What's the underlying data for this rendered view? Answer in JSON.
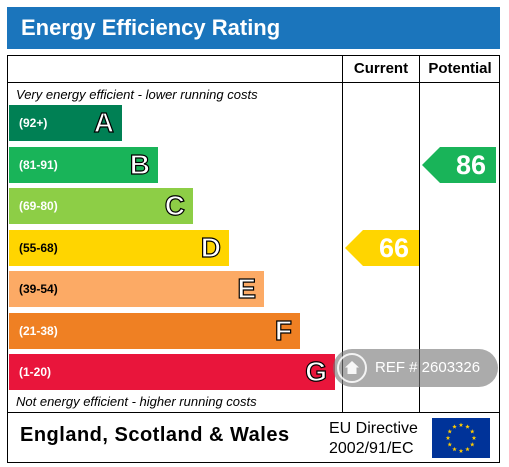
{
  "header": {
    "title": "Energy Efficiency Rating"
  },
  "columns": {
    "current": "Current",
    "potential": "Potential"
  },
  "notes": {
    "top": "Very energy efficient - lower running costs",
    "bottom": "Not energy efficient - higher running costs"
  },
  "chart_data": {
    "type": "bar",
    "bands": [
      {
        "range": "(92+)",
        "letter": "A",
        "color": "#008054"
      },
      {
        "range": "(81-91)",
        "letter": "B",
        "color": "#19b459"
      },
      {
        "range": "(69-80)",
        "letter": "C",
        "color": "#8dce46"
      },
      {
        "range": "(55-68)",
        "letter": "D",
        "color": "#ffd500"
      },
      {
        "range": "(39-54)",
        "letter": "E",
        "color": "#fcaa65"
      },
      {
        "range": "(21-38)",
        "letter": "F",
        "color": "#ef8023"
      },
      {
        "range": "(1-20)",
        "letter": "G",
        "color": "#e9153b"
      }
    ],
    "current": {
      "value": 66,
      "band": "D",
      "color": "#ffd500"
    },
    "potential": {
      "value": 86,
      "band": "B",
      "color": "#19b459"
    }
  },
  "footer": {
    "country": "England, Scotland & Wales",
    "directive_line1": "EU Directive",
    "directive_line2": "2002/91/EC"
  },
  "watermark": {
    "text": "REF # 2603326"
  }
}
